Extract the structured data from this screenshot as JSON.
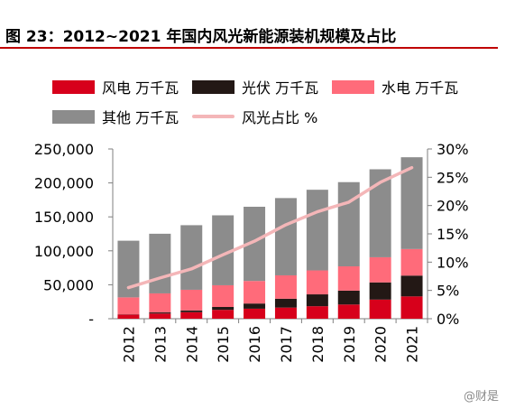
{
  "title": "图 23：2012~2021 年国内风光新能源装机规模及占比",
  "watermark": "@财是",
  "colors": {
    "wind": "#d7001b",
    "solar": "#231815",
    "hydro": "#ff6b7a",
    "other": "#8c8c8c",
    "share_line": "#f4b6b8",
    "title_rule": "#c00000"
  },
  "legend": [
    {
      "key": "wind",
      "label": "风电 万千瓦",
      "kind": "swatch"
    },
    {
      "key": "solar",
      "label": "光伏 万千瓦",
      "kind": "swatch"
    },
    {
      "key": "hydro",
      "label": "水电 万千瓦",
      "kind": "swatch"
    },
    {
      "key": "other",
      "label": "其他 万千瓦",
      "kind": "swatch"
    },
    {
      "key": "share_line",
      "label": "风光占比 %",
      "kind": "line"
    }
  ],
  "chart_data": {
    "type": "bar",
    "stacked": true,
    "categories": [
      "2012",
      "2013",
      "2014",
      "2015",
      "2016",
      "2017",
      "2018",
      "2019",
      "2020",
      "2021"
    ],
    "series": [
      {
        "key": "wind",
        "name": "风电 万千瓦",
        "values": [
          6142,
          7652,
          9657,
          13075,
          14747,
          16400,
          18426,
          20915,
          28153,
          32848
        ]
      },
      {
        "key": "solar",
        "name": "光伏 万千瓦",
        "values": [
          341,
          1589,
          2486,
          4218,
          7631,
          13042,
          17433,
          20418,
          25343,
          30656
        ]
      },
      {
        "key": "hydro",
        "name": "水电 万千瓦",
        "values": [
          24947,
          28044,
          30486,
          31954,
          33207,
          34411,
          35259,
          35804,
          37016,
          39092
        ]
      },
      {
        "key": "other",
        "name": "其他 万千瓦",
        "values": [
          83460,
          87865,
          95110,
          103023,
          109315,
          113835,
          118822,
          124013,
          129589,
          135222
        ]
      }
    ],
    "line_series": {
      "key": "share_line",
      "name": "风光占比 %",
      "axis": "right",
      "values": [
        5.5,
        7.2,
        8.8,
        11.3,
        13.7,
        16.6,
        18.9,
        20.6,
        24.1,
        26.7
      ]
    },
    "y_left": {
      "min": 0,
      "max": 250000,
      "ticks": [
        "-",
        "50,000",
        "100,000",
        "150,000",
        "200,000",
        "250,000"
      ]
    },
    "y_right": {
      "min": 0,
      "max": 30,
      "ticks": [
        "0%",
        "5%",
        "10%",
        "15%",
        "20%",
        "25%",
        "30%"
      ]
    },
    "grid": false,
    "legend_position": "top"
  }
}
